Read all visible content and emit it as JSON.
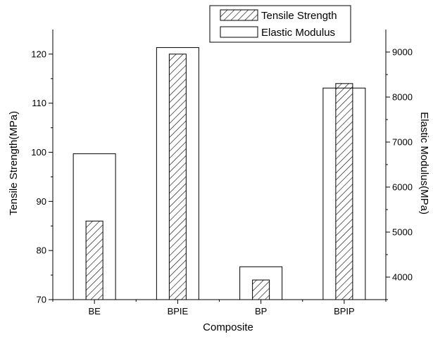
{
  "chart_data": {
    "type": "bar",
    "categories": [
      "BE",
      "BPIE",
      "BP",
      "BPIP"
    ],
    "xlabel": "Composite",
    "ylabel_left": "Tensile Strength(MPa)",
    "ylabel_right": "Elastic Modulus(MPa)",
    "ylim_left": [
      70,
      125
    ],
    "yticks_left": [
      70,
      80,
      90,
      100,
      110,
      120
    ],
    "ylim_right": [
      3500,
      9500
    ],
    "yticks_right": [
      4000,
      5000,
      6000,
      7000,
      8000,
      9000
    ],
    "series": [
      {
        "name": "Tensile Strength",
        "axis": "left",
        "pattern": "hatched",
        "values": [
          86,
          120,
          74,
          114
        ]
      },
      {
        "name": "Elastic Modulus",
        "axis": "right",
        "pattern": "open",
        "values": [
          6740,
          9100,
          4230,
          8200
        ]
      }
    ],
    "legend": {
      "position": "top-right"
    },
    "colors": {
      "bar_edge": "#000000",
      "background": "#ffffff"
    }
  }
}
